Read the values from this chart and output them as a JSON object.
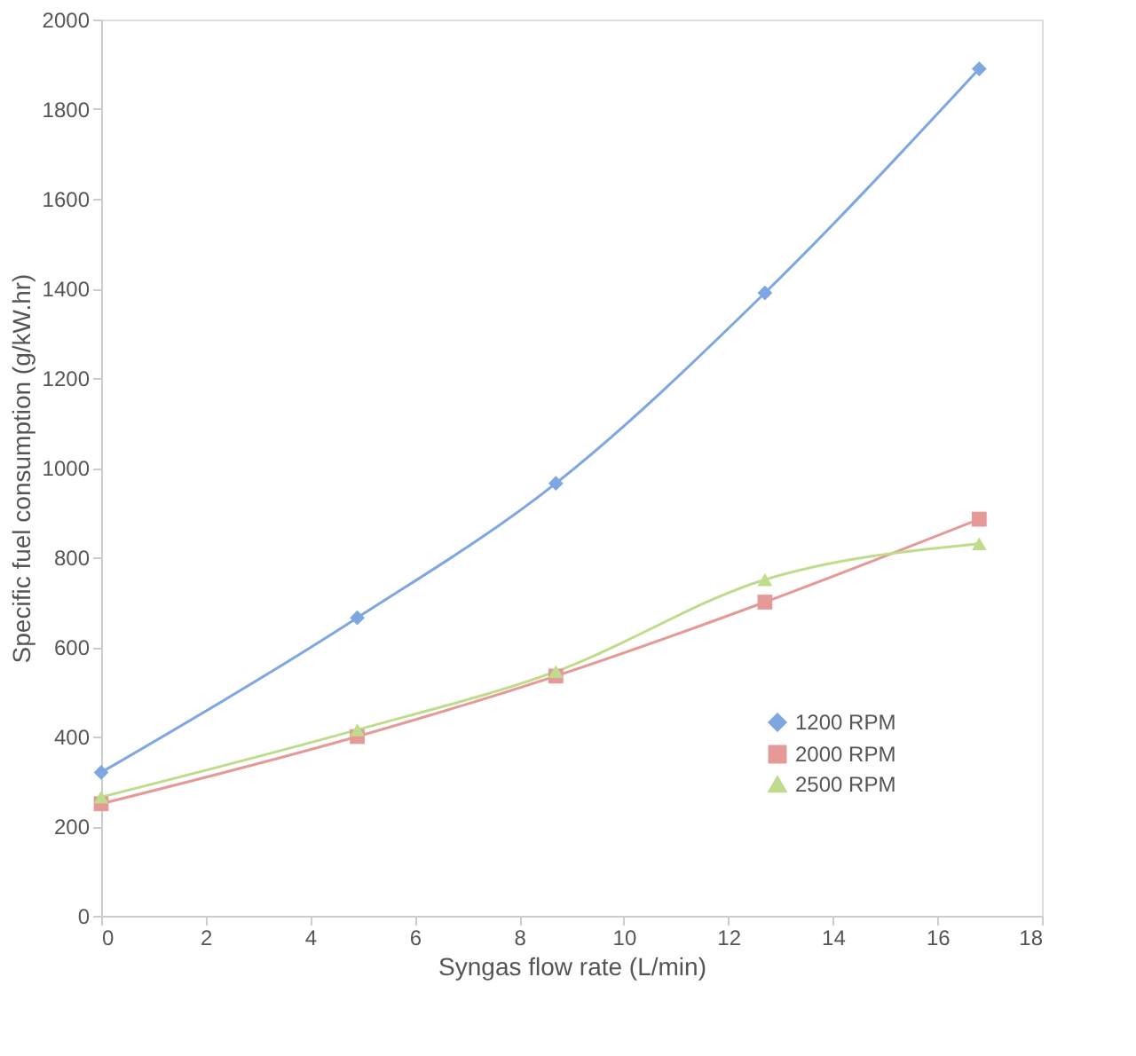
{
  "chart_data": {
    "type": "line",
    "xlabel": "Syngas flow rate (L/min)",
    "ylabel": "Specific fuel consumption (g/kW.hr)",
    "x": [
      0,
      4.9,
      8.7,
      12.7,
      16.8
    ],
    "series": [
      {
        "name": "1200 RPM",
        "color": "#7ea6e0",
        "marker": "diamond",
        "values": [
          320,
          665,
          965,
          1390,
          1890
        ]
      },
      {
        "name": "2000 RPM",
        "color": "#e59a98",
        "marker": "square",
        "values": [
          250,
          400,
          535,
          700,
          885
        ]
      },
      {
        "name": "2500 RPM",
        "color": "#bfdc8c",
        "marker": "triangle",
        "values": [
          265,
          415,
          545,
          750,
          830
        ]
      }
    ],
    "xlim": [
      0,
      18
    ],
    "xticks": [
      0,
      2,
      4,
      6,
      8,
      10,
      12,
      14,
      16,
      18
    ],
    "ylim": [
      0,
      2000
    ],
    "yticks": [
      0,
      200,
      400,
      600,
      800,
      1000,
      1200,
      1400,
      1600,
      1800,
      2000
    ],
    "grid": false,
    "legend": "right"
  }
}
